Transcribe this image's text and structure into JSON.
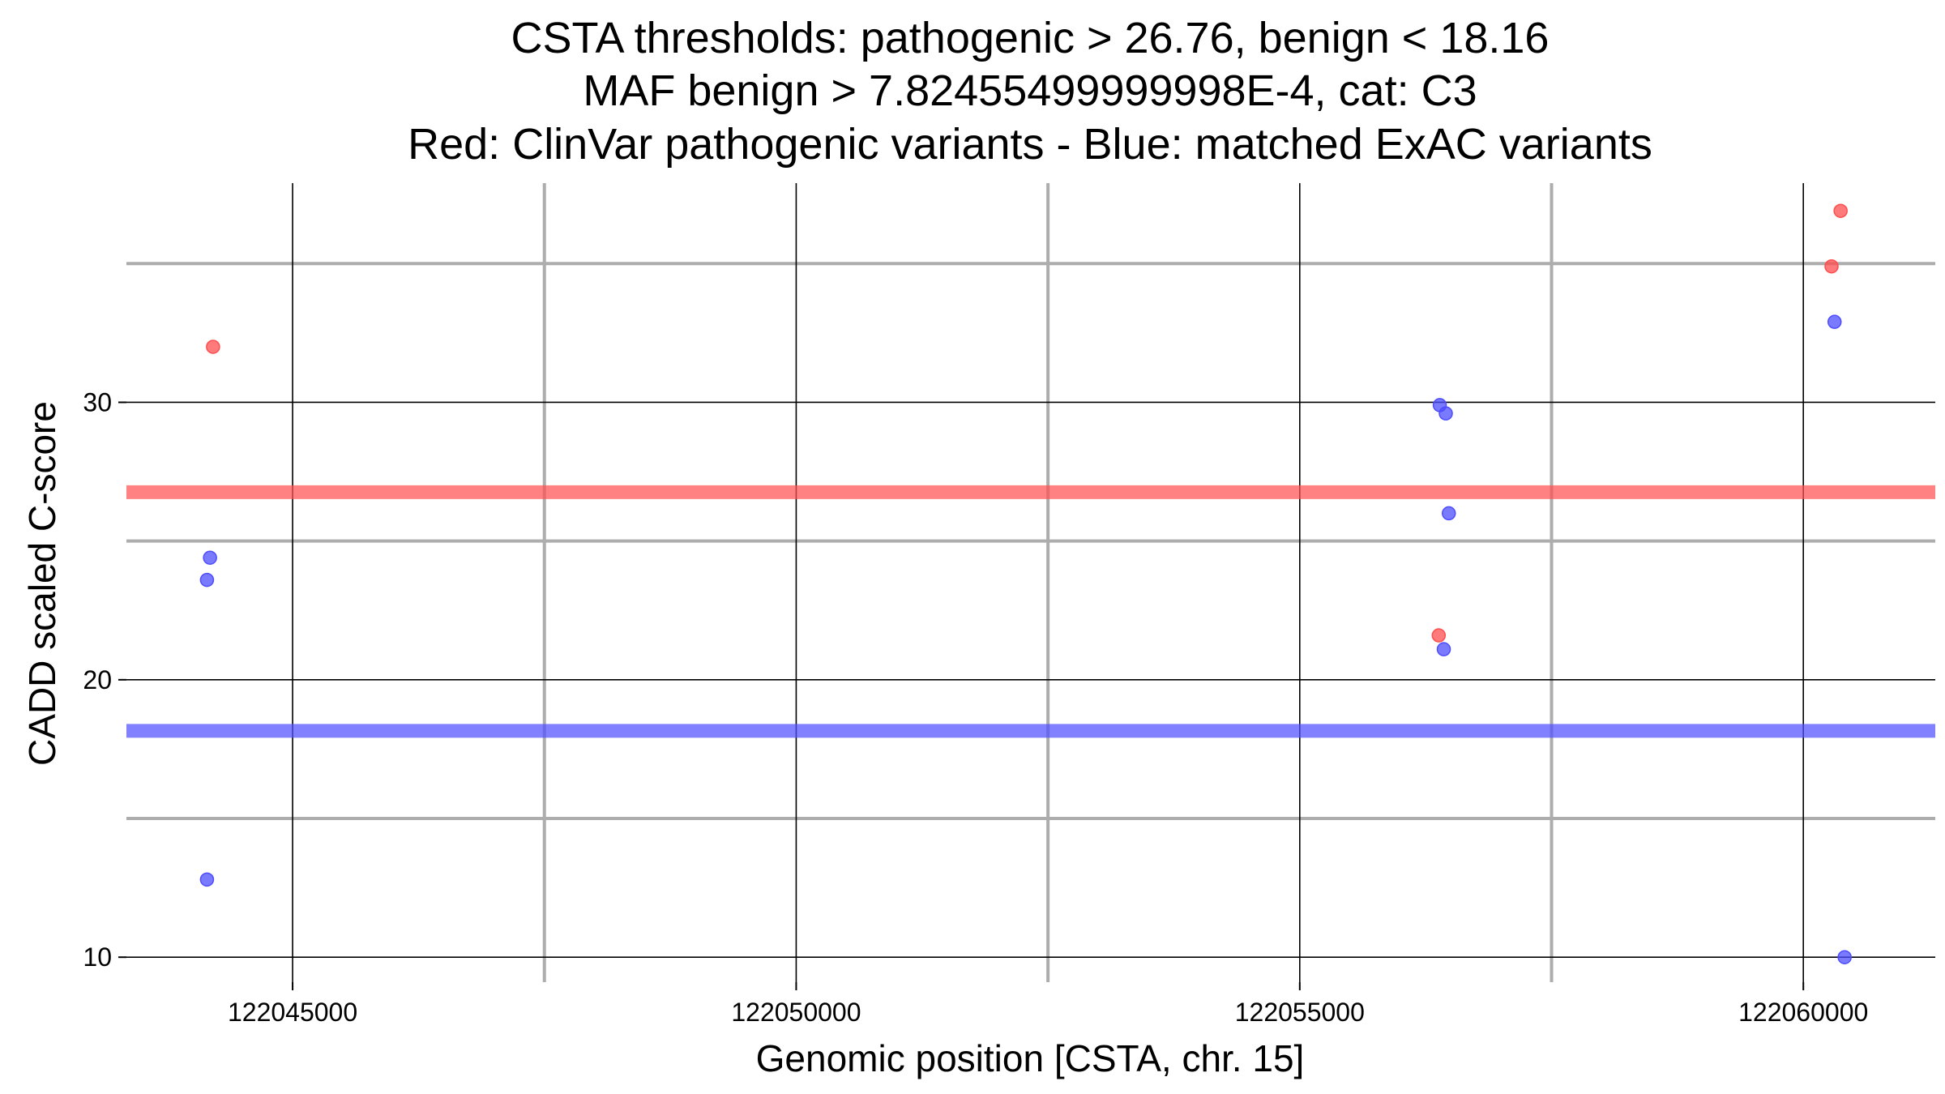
{
  "chart_data": {
    "type": "scatter",
    "title_lines": [
      "CSTA thresholds: pathogenic > 26.76, benign < 18.16",
      "MAF benign > 7.82455499999998E-4, cat: C3",
      "Red: ClinVar pathogenic variants - Blue: matched ExAC variants"
    ],
    "xlabel": "Genomic position [CSTA, chr. 15]",
    "ylabel": "CADD scaled C-score",
    "xlim": [
      122043350,
      122061310
    ],
    "ylim": [
      9.1,
      37.9
    ],
    "x_ticks": [
      122045000,
      122050000,
      122055000,
      122060000
    ],
    "x_tick_labels": [
      "122045000",
      "122050000",
      "122055000",
      "122060000"
    ],
    "x_minor_gridlines": [
      122047500,
      122052500,
      122057500
    ],
    "y_ticks": [
      10,
      20,
      30
    ],
    "y_tick_labels": [
      "10",
      "20",
      "30"
    ],
    "y_minor_gridlines": [
      15,
      25,
      35
    ],
    "grid": true,
    "thresholds": [
      {
        "name": "pathogenic",
        "value": 26.76,
        "color": "#ff5050"
      },
      {
        "name": "benign",
        "value": 18.16,
        "color": "#5050ff"
      }
    ],
    "series": [
      {
        "name": "ClinVar pathogenic variants",
        "color": "#ff4d4d",
        "points": [
          {
            "x": 122044210,
            "y": 32.0
          },
          {
            "x": 122056380,
            "y": 21.6
          },
          {
            "x": 122060280,
            "y": 34.9
          },
          {
            "x": 122060370,
            "y": 36.9
          }
        ]
      },
      {
        "name": "matched ExAC variants",
        "color": "#4d4dff",
        "points": [
          {
            "x": 122044150,
            "y": 12.8
          },
          {
            "x": 122044150,
            "y": 23.6
          },
          {
            "x": 122044180,
            "y": 24.4
          },
          {
            "x": 122056390,
            "y": 29.9
          },
          {
            "x": 122056450,
            "y": 29.6
          },
          {
            "x": 122056430,
            "y": 21.1
          },
          {
            "x": 122056480,
            "y": 26.0
          },
          {
            "x": 122060310,
            "y": 32.9
          },
          {
            "x": 122060410,
            "y": 10.0
          }
        ]
      }
    ]
  }
}
